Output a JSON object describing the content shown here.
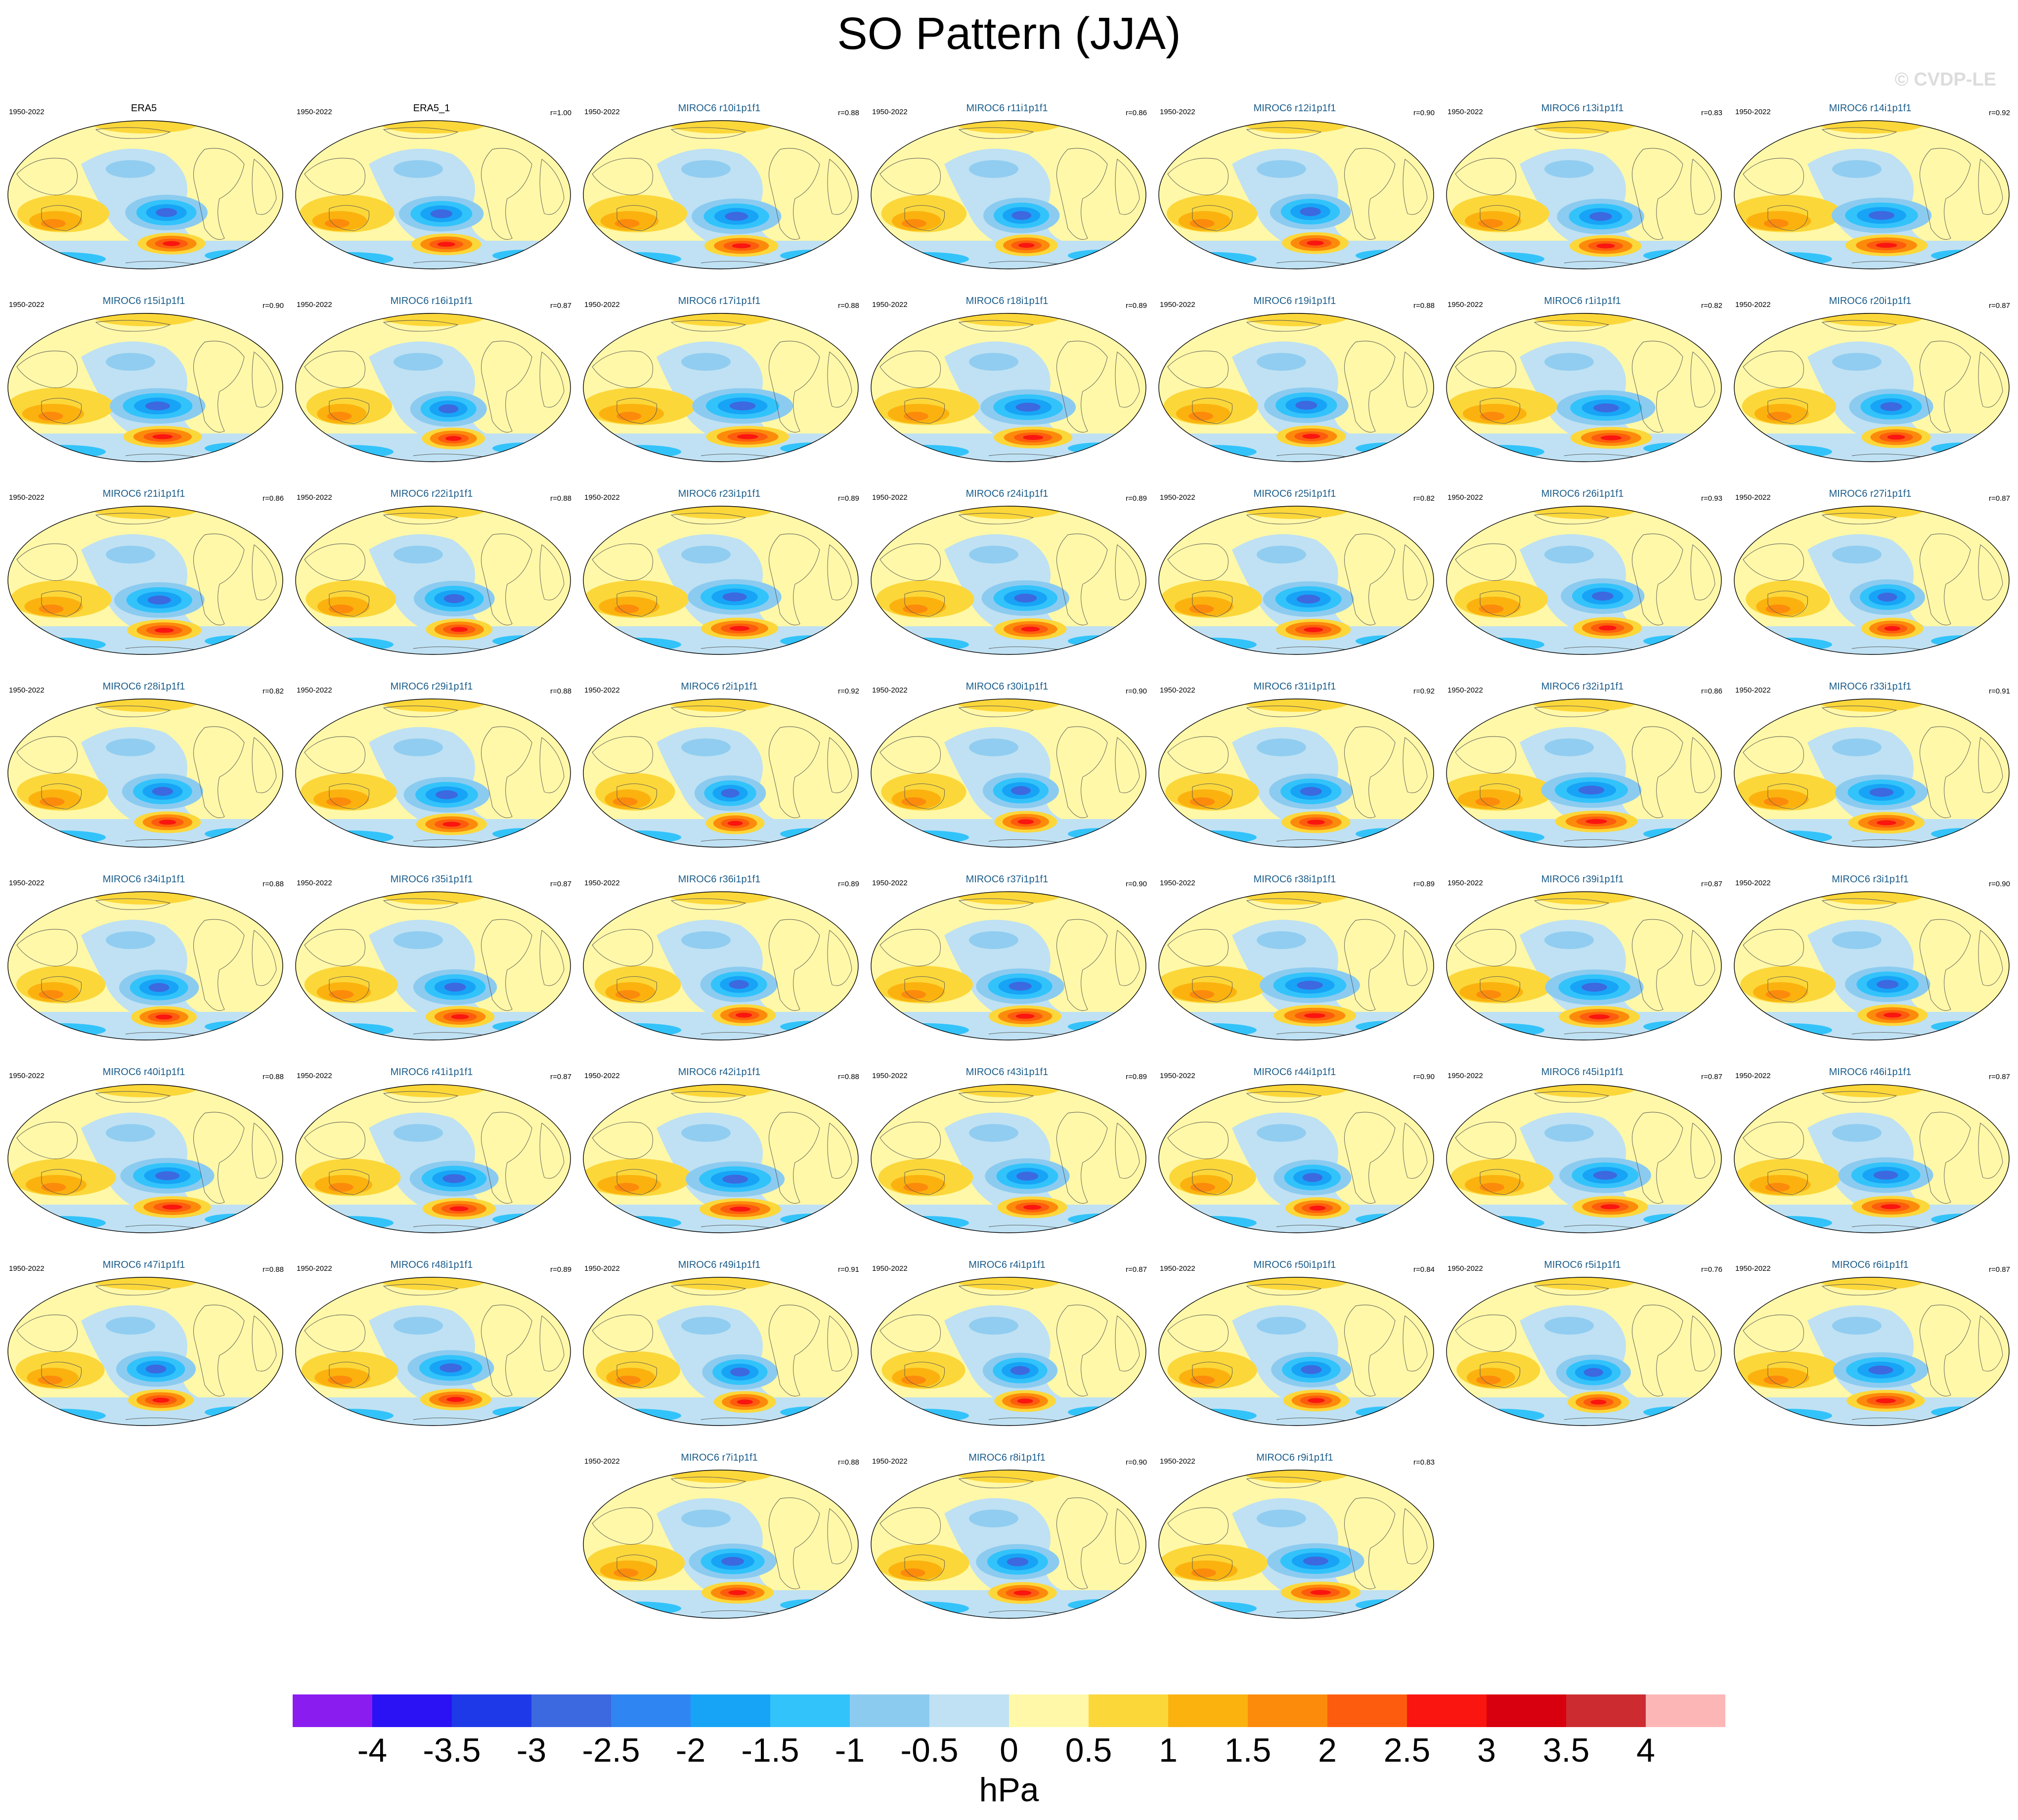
{
  "title": "SO Pattern (JJA)",
  "watermark": "© CVDP-LE",
  "colorbar": {
    "unit": "hPa",
    "colors": [
      "#8b1cf0",
      "#2a12f5",
      "#1e3ae8",
      "#3c68e0",
      "#2f86f2",
      "#17a4f6",
      "#33c3fb",
      "#8ccbf0",
      "#bfe1f3",
      "#fff8a8",
      "#fcd73a",
      "#fbb20f",
      "#fd8b0b",
      "#fd5c0e",
      "#fa1510",
      "#d8000e",
      "#cc2b30",
      "#fdb6b6"
    ],
    "ticks": [
      "-4",
      "-3.5",
      "-3",
      "-2.5",
      "-2",
      "-1.5",
      "-1",
      "-0.5",
      "0",
      "0.5",
      "1",
      "1.5",
      "2",
      "2.5",
      "3",
      "3.5",
      "4"
    ]
  },
  "panels": [
    {
      "name": "ERA5",
      "years": "1950-2022",
      "corr": ""
    },
    {
      "name": "ERA5_1",
      "years": "1950-2022",
      "corr": "r=1.00"
    },
    {
      "name": "MIROC6 r10i1p1f1",
      "years": "1950-2022",
      "corr": "r=0.88"
    },
    {
      "name": "MIROC6 r11i1p1f1",
      "years": "1950-2022",
      "corr": "r=0.86"
    },
    {
      "name": "MIROC6 r12i1p1f1",
      "years": "1950-2022",
      "corr": "r=0.90"
    },
    {
      "name": "MIROC6 r13i1p1f1",
      "years": "1950-2022",
      "corr": "r=0.83"
    },
    {
      "name": "MIROC6 r14i1p1f1",
      "years": "1950-2022",
      "corr": "r=0.92"
    },
    {
      "name": "MIROC6 r15i1p1f1",
      "years": "1950-2022",
      "corr": "r=0.90"
    },
    {
      "name": "MIROC6 r16i1p1f1",
      "years": "1950-2022",
      "corr": "r=0.87"
    },
    {
      "name": "MIROC6 r17i1p1f1",
      "years": "1950-2022",
      "corr": "r=0.88"
    },
    {
      "name": "MIROC6 r18i1p1f1",
      "years": "1950-2022",
      "corr": "r=0.89"
    },
    {
      "name": "MIROC6 r19i1p1f1",
      "years": "1950-2022",
      "corr": "r=0.88"
    },
    {
      "name": "MIROC6 r1i1p1f1",
      "years": "1950-2022",
      "corr": "r=0.82"
    },
    {
      "name": "MIROC6 r20i1p1f1",
      "years": "1950-2022",
      "corr": "r=0.87"
    },
    {
      "name": "MIROC6 r21i1p1f1",
      "years": "1950-2022",
      "corr": "r=0.86"
    },
    {
      "name": "MIROC6 r22i1p1f1",
      "years": "1950-2022",
      "corr": "r=0.88"
    },
    {
      "name": "MIROC6 r23i1p1f1",
      "years": "1950-2022",
      "corr": "r=0.89"
    },
    {
      "name": "MIROC6 r24i1p1f1",
      "years": "1950-2022",
      "corr": "r=0.89"
    },
    {
      "name": "MIROC6 r25i1p1f1",
      "years": "1950-2022",
      "corr": "r=0.82"
    },
    {
      "name": "MIROC6 r26i1p1f1",
      "years": "1950-2022",
      "corr": "r=0.93"
    },
    {
      "name": "MIROC6 r27i1p1f1",
      "years": "1950-2022",
      "corr": "r=0.87"
    },
    {
      "name": "MIROC6 r28i1p1f1",
      "years": "1950-2022",
      "corr": "r=0.82"
    },
    {
      "name": "MIROC6 r29i1p1f1",
      "years": "1950-2022",
      "corr": "r=0.88"
    },
    {
      "name": "MIROC6 r2i1p1f1",
      "years": "1950-2022",
      "corr": "r=0.92"
    },
    {
      "name": "MIROC6 r30i1p1f1",
      "years": "1950-2022",
      "corr": "r=0.90"
    },
    {
      "name": "MIROC6 r31i1p1f1",
      "years": "1950-2022",
      "corr": "r=0.92"
    },
    {
      "name": "MIROC6 r32i1p1f1",
      "years": "1950-2022",
      "corr": "r=0.86"
    },
    {
      "name": "MIROC6 r33i1p1f1",
      "years": "1950-2022",
      "corr": "r=0.91"
    },
    {
      "name": "MIROC6 r34i1p1f1",
      "years": "1950-2022",
      "corr": "r=0.88"
    },
    {
      "name": "MIROC6 r35i1p1f1",
      "years": "1950-2022",
      "corr": "r=0.87"
    },
    {
      "name": "MIROC6 r36i1p1f1",
      "years": "1950-2022",
      "corr": "r=0.89"
    },
    {
      "name": "MIROC6 r37i1p1f1",
      "years": "1950-2022",
      "corr": "r=0.90"
    },
    {
      "name": "MIROC6 r38i1p1f1",
      "years": "1950-2022",
      "corr": "r=0.89"
    },
    {
      "name": "MIROC6 r39i1p1f1",
      "years": "1950-2022",
      "corr": "r=0.87"
    },
    {
      "name": "MIROC6 r3i1p1f1",
      "years": "1950-2022",
      "corr": "r=0.90"
    },
    {
      "name": "MIROC6 r40i1p1f1",
      "years": "1950-2022",
      "corr": "r=0.88"
    },
    {
      "name": "MIROC6 r41i1p1f1",
      "years": "1950-2022",
      "corr": "r=0.87"
    },
    {
      "name": "MIROC6 r42i1p1f1",
      "years": "1950-2022",
      "corr": "r=0.88"
    },
    {
      "name": "MIROC6 r43i1p1f1",
      "years": "1950-2022",
      "corr": "r=0.89"
    },
    {
      "name": "MIROC6 r44i1p1f1",
      "years": "1950-2022",
      "corr": "r=0.90"
    },
    {
      "name": "MIROC6 r45i1p1f1",
      "years": "1950-2022",
      "corr": "r=0.87"
    },
    {
      "name": "MIROC6 r46i1p1f1",
      "years": "1950-2022",
      "corr": "r=0.87"
    },
    {
      "name": "MIROC6 r47i1p1f1",
      "years": "1950-2022",
      "corr": "r=0.88"
    },
    {
      "name": "MIROC6 r48i1p1f1",
      "years": "1950-2022",
      "corr": "r=0.89"
    },
    {
      "name": "MIROC6 r49i1p1f1",
      "years": "1950-2022",
      "corr": "r=0.91"
    },
    {
      "name": "MIROC6 r4i1p1f1",
      "years": "1950-2022",
      "corr": "r=0.87"
    },
    {
      "name": "MIROC6 r50i1p1f1",
      "years": "1950-2022",
      "corr": "r=0.84"
    },
    {
      "name": "MIROC6 r5i1p1f1",
      "years": "1950-2022",
      "corr": "r=0.76"
    },
    {
      "name": "MIROC6 r6i1p1f1",
      "years": "1950-2022",
      "corr": "r=0.87"
    },
    {
      "name": "MIROC6 r7i1p1f1",
      "years": "1950-2022",
      "corr": "r=0.88"
    },
    {
      "name": "MIROC6 r8i1p1f1",
      "years": "1950-2022",
      "corr": "r=0.90"
    },
    {
      "name": "MIROC6 r9i1p1f1",
      "years": "1950-2022",
      "corr": "r=0.83"
    }
  ]
}
